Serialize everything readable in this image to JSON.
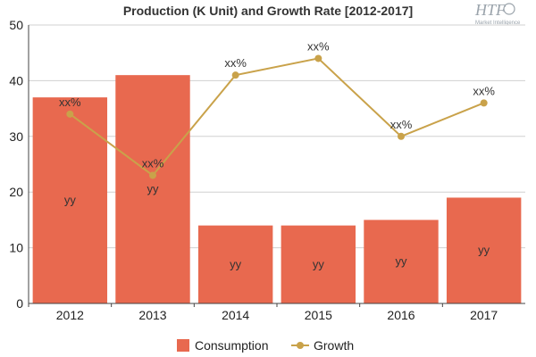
{
  "watermark": {
    "brand": "HTF",
    "tagline": "Market Intelligence"
  },
  "chart_data": {
    "type": "bar",
    "title": "Production (K Unit) and Growth Rate [2012-2017]",
    "categories": [
      "2012",
      "2013",
      "2014",
      "2015",
      "2016",
      "2017"
    ],
    "ylim": [
      0,
      50
    ],
    "yticks": [
      0,
      10,
      20,
      30,
      40,
      50
    ],
    "grid": true,
    "legend_position": "bottom",
    "series": [
      {
        "name": "Consumption",
        "type": "bar",
        "color": "#e8694f",
        "values": [
          37,
          41,
          14,
          14,
          15,
          19
        ],
        "labels": [
          "yy",
          "yy",
          "yy",
          "yy",
          "yy",
          "yy"
        ]
      },
      {
        "name": "Growth",
        "type": "line",
        "color": "#c9a24a",
        "values": [
          34,
          23,
          41,
          44,
          30,
          36
        ],
        "labels": [
          "xx%",
          "xx%",
          "xx%",
          "xx%",
          "xx%",
          "xx%"
        ]
      }
    ]
  }
}
